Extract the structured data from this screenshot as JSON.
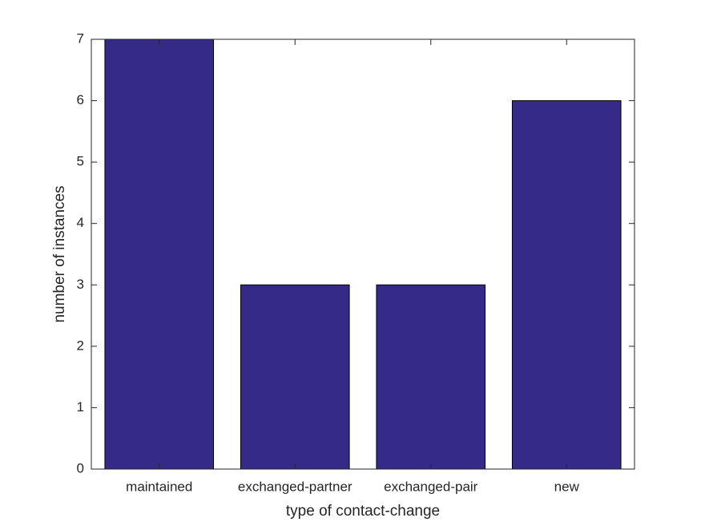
{
  "chart_data": {
    "type": "bar",
    "x_label": "type of contact-change",
    "y_label": "number of instances",
    "categories": [
      "maintained",
      "exchanged-partner",
      "exchanged-pair",
      "new"
    ],
    "values": [
      7,
      3,
      3,
      6
    ],
    "color": "#352a87",
    "ylim": [
      0,
      7
    ],
    "yticks": [
      0,
      1,
      2,
      3,
      4,
      5,
      6,
      7
    ],
    "grid": false
  }
}
